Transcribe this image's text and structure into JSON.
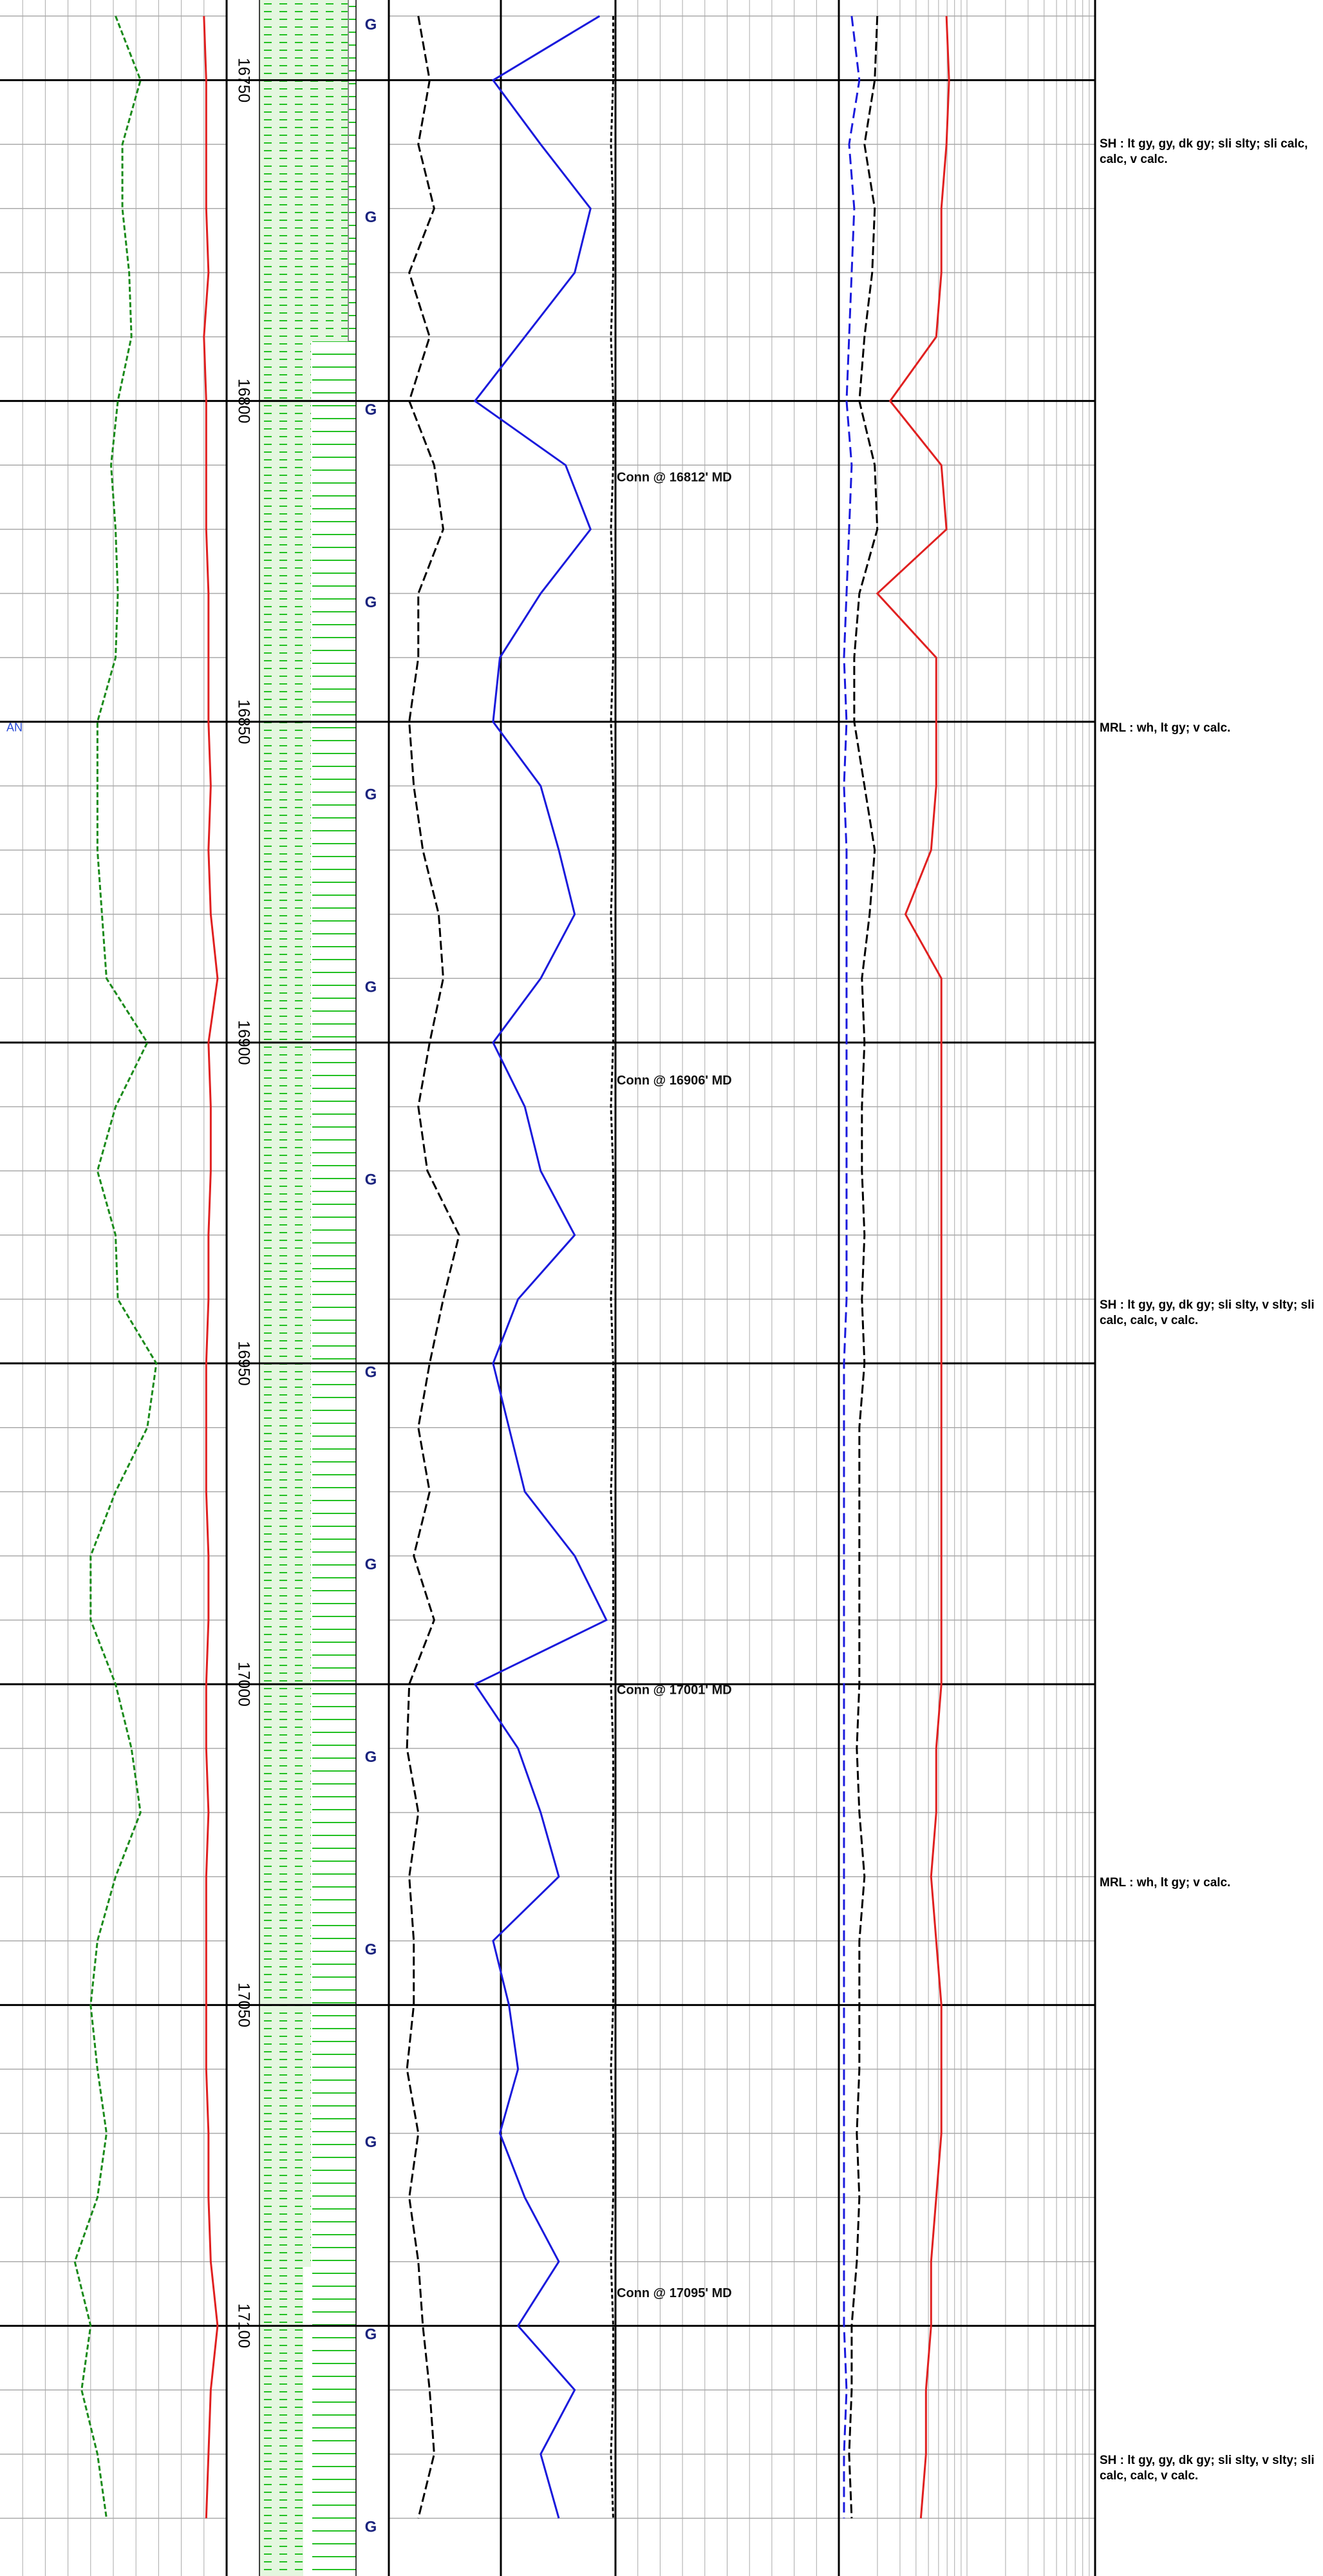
{
  "depth_axis": {
    "range": [
      16737.5,
      17139
    ],
    "labels": [
      16750,
      16800,
      16850,
      16900,
      16950,
      17000,
      17050,
      17100
    ]
  },
  "side_mark": {
    "depth": 16851,
    "text": "AN"
  },
  "gas_markers": [
    {
      "depth": 16741.5,
      "text": "G"
    },
    {
      "depth": 16771.5,
      "text": "G"
    },
    {
      "depth": 16801.5,
      "text": "G"
    },
    {
      "depth": 16831.5,
      "text": "G"
    },
    {
      "depth": 16861.5,
      "text": "G"
    },
    {
      "depth": 16891.5,
      "text": "G"
    },
    {
      "depth": 16921.5,
      "text": "G"
    },
    {
      "depth": 16951.5,
      "text": "G"
    },
    {
      "depth": 16981.5,
      "text": "G"
    },
    {
      "depth": 17011.5,
      "text": "G"
    },
    {
      "depth": 17041.5,
      "text": "G"
    },
    {
      "depth": 17071.5,
      "text": "G"
    },
    {
      "depth": 17101.5,
      "text": "G"
    },
    {
      "depth": 17131.5,
      "text": "G"
    }
  ],
  "connections": [
    {
      "depth": 16812,
      "text": "Conn @ 16812' MD"
    },
    {
      "depth": 16906,
      "text": "Conn @ 16906' MD"
    },
    {
      "depth": 17001,
      "text": "Conn @ 17001' MD"
    },
    {
      "depth": 17095,
      "text": "Conn @ 17095' MD"
    }
  ],
  "lithology_notes": [
    {
      "depth": 16760,
      "text": "SH : lt gy, gy, dk gy;  sli slty;  sli calc, calc, v calc."
    },
    {
      "depth": 16851,
      "text": "MRL : wh, lt gy;  v calc."
    },
    {
      "depth": 16941,
      "text": "SH : lt gy, gy, dk gy;  sli slty, v slty;  sli calc, calc, v calc."
    },
    {
      "depth": 17031,
      "text": "MRL : wh, lt gy;  v calc."
    },
    {
      "depth": 17121,
      "text": "SH : lt gy, gy, dk gy;  sli slty, v slty;  sli calc, calc, v calc."
    }
  ],
  "curves": {
    "xlim": [
      0,
      100
    ],
    "depths": [
      16740,
      16750,
      16760,
      16770,
      16780,
      16790,
      16800,
      16810,
      16820,
      16830,
      16840,
      16850,
      16860,
      16870,
      16880,
      16890,
      16900,
      16910,
      16920,
      16930,
      16940,
      16950,
      16960,
      16970,
      16980,
      16990,
      17000,
      17010,
      17020,
      17030,
      17040,
      17050,
      17060,
      17070,
      17080,
      17090,
      17100,
      17110,
      17120,
      17130
    ],
    "items": [
      {
        "track": 0,
        "color": "#1a8a1a",
        "dash": "8 4",
        "values": [
          51,
          62,
          54,
          54,
          57,
          58,
          52,
          49,
          51,
          52,
          51,
          43,
          43,
          43,
          45,
          47,
          65,
          51,
          43,
          51,
          52,
          69,
          65,
          51,
          40,
          40,
          51,
          58,
          62,
          51,
          43,
          40,
          43,
          47,
          43,
          33,
          40,
          36,
          43,
          47
        ]
      },
      {
        "track": 0,
        "color": "#e02020",
        "dash": "none",
        "values": [
          90,
          91,
          91,
          91,
          92,
          90,
          91,
          91,
          91,
          92,
          92,
          92,
          93,
          92,
          93,
          96,
          92,
          93,
          93,
          92,
          92,
          91,
          91,
          91,
          92,
          92,
          91,
          91,
          92,
          91,
          91,
          91,
          91,
          92,
          92,
          93,
          96,
          93,
          92,
          91
        ]
      },
      {
        "track": 1,
        "color": "#000000",
        "dash": "14 6",
        "values": [
          13,
          18,
          13,
          20,
          9,
          18,
          9,
          20,
          24,
          13,
          13,
          9,
          11,
          15,
          22,
          24,
          18,
          13,
          17,
          31,
          24,
          18,
          13,
          18,
          11,
          20,
          9,
          8,
          13,
          9,
          11,
          11,
          8,
          13,
          9,
          13,
          15,
          18,
          20,
          13
        ]
      },
      {
        "track": 1,
        "color": "#1a1adc",
        "dash": "none",
        "values": [
          93,
          46,
          67,
          89,
          82,
          60,
          38,
          78,
          89,
          67,
          49,
          46,
          67,
          75,
          82,
          67,
          46,
          60,
          67,
          82,
          57,
          46,
          53,
          60,
          82,
          96,
          38,
          57,
          67,
          75,
          46,
          53,
          57,
          49,
          60,
          75,
          57,
          82,
          67,
          75
        ]
      },
      {
        "track": 1,
        "color": "#000000",
        "dash": "6 4",
        "values": [
          99,
          99,
          98,
          99,
          99,
          98,
          99,
          99,
          98,
          99,
          99,
          98,
          99,
          99,
          98,
          99,
          99,
          98,
          99,
          99,
          98,
          99,
          99,
          98,
          99,
          99,
          98,
          99,
          99,
          98,
          99,
          99,
          98,
          99,
          99,
          98,
          99,
          99,
          98,
          99
        ]
      },
      {
        "track": 2,
        "color": "#1a1adc",
        "dash": "16 8",
        "values": [
          5,
          8,
          4,
          6,
          5,
          4,
          3,
          5,
          4,
          3,
          2,
          3,
          2,
          3,
          3,
          3,
          3,
          3,
          3,
          3,
          3,
          2,
          2,
          2,
          2,
          2,
          2,
          2,
          2,
          2,
          2,
          2,
          2,
          2,
          2,
          2,
          2,
          3,
          2,
          2
        ]
      },
      {
        "track": 2,
        "color": "#000000",
        "dash": "14 6",
        "values": [
          15,
          14,
          10,
          14,
          13,
          10,
          8,
          14,
          15,
          8,
          6,
          6,
          10,
          14,
          12,
          9,
          10,
          9,
          9,
          10,
          9,
          10,
          8,
          8,
          8,
          8,
          8,
          7,
          8,
          10,
          8,
          8,
          8,
          7,
          8,
          7,
          5,
          5,
          4,
          5
        ]
      },
      {
        "track": 2,
        "color": "#e02020",
        "dash": "none",
        "values": [
          42,
          43,
          42,
          40,
          40,
          38,
          20,
          40,
          42,
          15,
          38,
          38,
          38,
          36,
          26,
          40,
          40,
          40,
          40,
          40,
          40,
          40,
          40,
          40,
          40,
          40,
          40,
          38,
          38,
          36,
          38,
          40,
          40,
          40,
          38,
          36,
          36,
          34,
          34,
          32
        ]
      }
    ]
  }
}
